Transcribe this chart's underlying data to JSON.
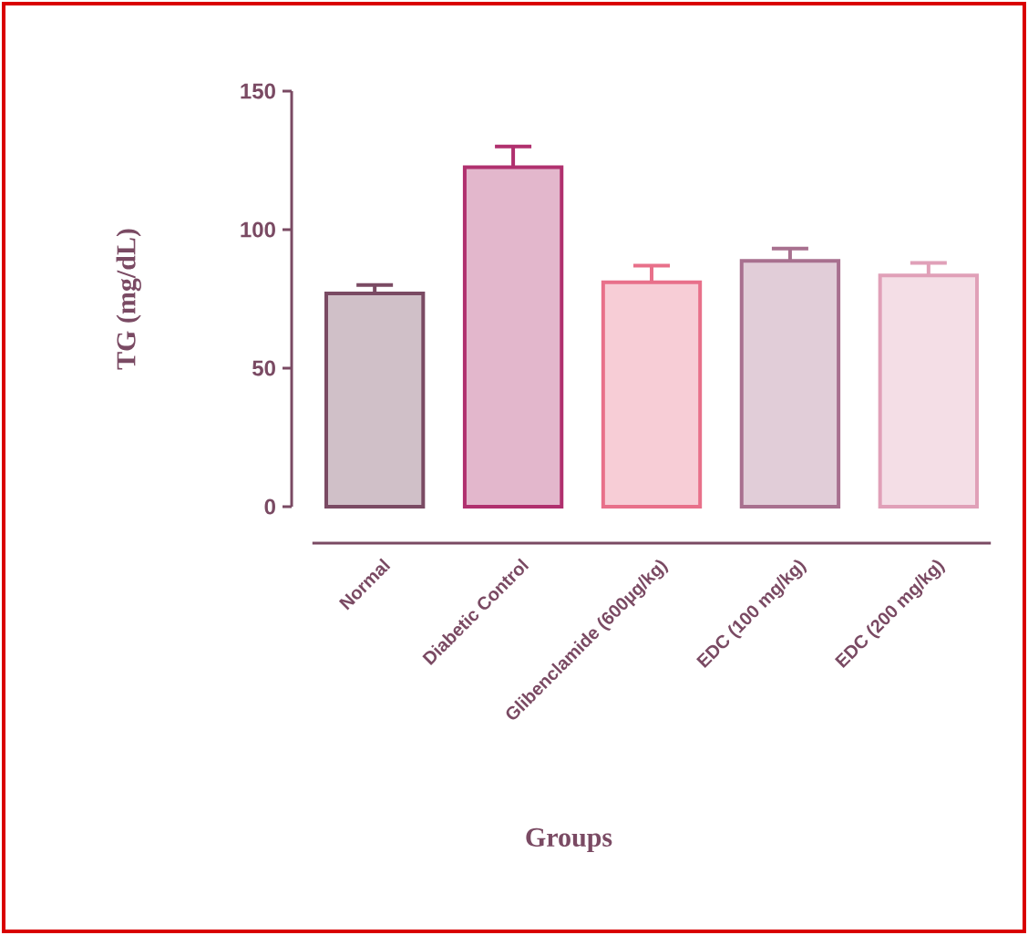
{
  "chart_data": {
    "type": "bar",
    "xlabel": "Groups",
    "ylabel": "TG (mg/dL)",
    "categories": [
      "Normal",
      "Diabetic Control",
      "Glibenclamide (600µg/kg)",
      "EDC (100 mg/kg)",
      "EDC (200 mg/kg)"
    ],
    "values": [
      77,
      122.5,
      81,
      88.7,
      83.5
    ],
    "errors": [
      3,
      7.5,
      6,
      4.5,
      4.5
    ],
    "colors": [
      "#7a4a63",
      "#b0306e",
      "#e8708a",
      "#a8708f",
      "#e0a0b8"
    ],
    "ylim": [
      0,
      150
    ],
    "yticks": [
      0,
      50,
      100,
      150
    ],
    "grid": false
  }
}
